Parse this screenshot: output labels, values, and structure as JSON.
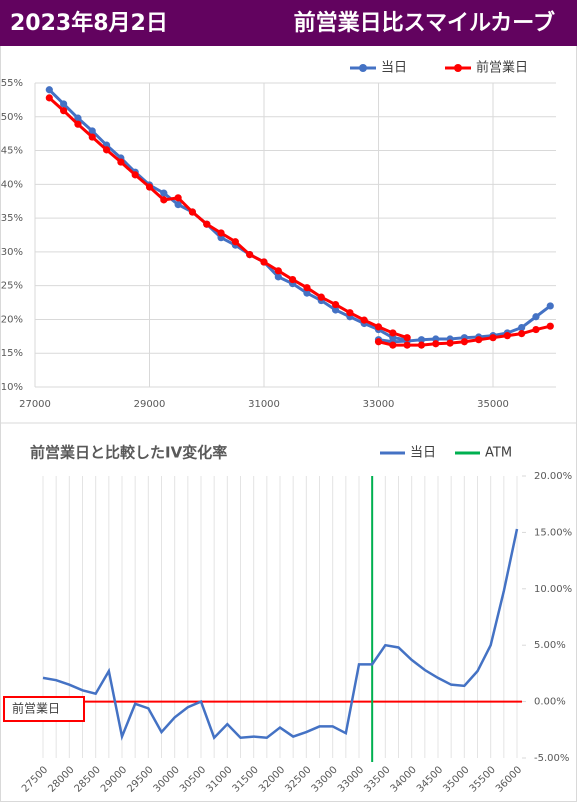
{
  "header": {
    "date": "2023年8月2日",
    "title": "前営業日比スマイルカーブ"
  },
  "chart_data": [
    {
      "type": "line",
      "x": [
        27250,
        27500,
        27750,
        28000,
        28250,
        28500,
        28750,
        29000,
        29250,
        29500,
        29750,
        30000,
        30250,
        30500,
        30750,
        31000,
        31250,
        31500,
        31750,
        32000,
        32250,
        32500,
        32750,
        33000,
        33250,
        33500,
        null,
        33000,
        33250,
        33500,
        33750,
        34000,
        34250,
        34500,
        34750,
        35000,
        35250,
        35500,
        35750,
        36000
      ],
      "series": [
        {
          "name": "当日",
          "color": "#4472c4",
          "values": [
            54.0,
            51.9,
            49.8,
            47.9,
            45.8,
            43.9,
            41.8,
            39.9,
            38.7,
            37.0,
            35.9,
            34.1,
            32.1,
            31.0,
            29.6,
            28.5,
            26.3,
            25.3,
            23.9,
            22.8,
            21.4,
            20.4,
            19.4,
            18.5,
            17.3,
            17.0,
            null,
            17.0,
            16.7,
            16.8,
            17.0,
            17.1,
            17.1,
            17.3,
            17.4,
            17.6,
            18.0,
            18.8,
            20.4,
            22.0
          ]
        },
        {
          "name": "前営業日",
          "color": "#ff0000",
          "values": [
            52.8,
            50.9,
            48.9,
            47.0,
            45.1,
            43.3,
            41.4,
            39.6,
            37.7,
            38.0,
            35.9,
            34.1,
            32.8,
            31.5,
            29.6,
            28.5,
            27.2,
            25.9,
            24.7,
            23.3,
            22.2,
            21.0,
            19.9,
            18.9,
            18.0,
            17.3,
            null,
            16.7,
            16.2,
            16.2,
            16.2,
            16.4,
            16.5,
            16.7,
            17.0,
            17.3,
            17.6,
            17.9,
            18.5,
            19.0
          ]
        }
      ],
      "xlim": [
        27000,
        36100
      ],
      "xticks": [
        27000,
        29000,
        31000,
        33000,
        35000
      ],
      "ylim": [
        10,
        55
      ],
      "yticks": [
        {
          "value": 10,
          "label": "10%"
        },
        {
          "value": 15,
          "label": "15%"
        },
        {
          "value": 20,
          "label": "20%"
        },
        {
          "value": 25,
          "label": "25%"
        },
        {
          "value": 30,
          "label": "30%"
        },
        {
          "value": 35,
          "label": "35%"
        },
        {
          "value": 40,
          "label": "40%"
        },
        {
          "value": 45,
          "label": "45%"
        },
        {
          "value": 50,
          "label": "50%"
        },
        {
          "value": 55,
          "label": "55%"
        }
      ],
      "grid": true,
      "legend": "top"
    },
    {
      "type": "line",
      "title": "前営業日と比較したIV変化率",
      "categories": [
        "27500",
        null,
        "28000",
        null,
        "28500",
        null,
        "29000",
        null,
        "29500",
        null,
        "30000",
        null,
        "30500",
        null,
        "31000",
        null,
        "31500",
        null,
        "32000",
        null,
        "32500",
        null,
        "33000",
        null,
        "33000",
        null,
        "33500",
        null,
        "34000",
        null,
        "34500",
        null,
        "35000",
        null,
        "35500",
        null,
        "36000"
      ],
      "series": [
        {
          "name": "当日",
          "color": "#4472c4",
          "axis": "y2",
          "values": [
            2.1,
            1.9,
            1.5,
            1.0,
            0.7,
            2.7,
            -3.1,
            -0.2,
            -0.6,
            -2.7,
            -1.4,
            -0.5,
            0.0,
            -3.2,
            -2.0,
            -3.2,
            -3.1,
            -3.2,
            -2.3,
            -3.1,
            -2.7,
            -2.2,
            -2.2,
            -2.8,
            3.3,
            3.3,
            5.0,
            4.8,
            3.7,
            2.8,
            2.1,
            1.5,
            1.4,
            2.7,
            5.0,
            9.8,
            15.3
          ]
        }
      ],
      "atm": {
        "name": "ATM",
        "color": "#00b050",
        "x_index": 25
      },
      "reference_line": {
        "label": "前営業日",
        "value": 0,
        "color": "#ff0000"
      },
      "y2lim": [
        -5,
        20
      ],
      "y2ticks": [
        {
          "value": -5,
          "label": "-5.00%"
        },
        {
          "value": 0,
          "label": "0.00%"
        },
        {
          "value": 5,
          "label": "5.00%"
        },
        {
          "value": 10,
          "label": "10.00%"
        },
        {
          "value": 15,
          "label": "15.00%"
        },
        {
          "value": 20,
          "label": "20.00%"
        }
      ],
      "grid": true,
      "legend": "top"
    }
  ]
}
